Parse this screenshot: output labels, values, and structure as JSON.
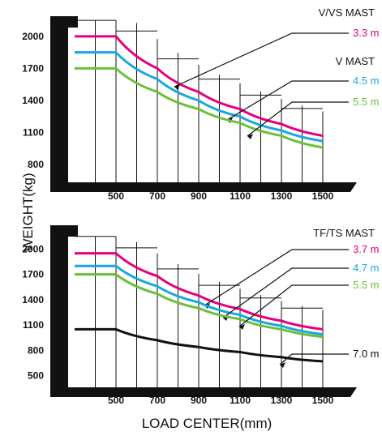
{
  "axis_titles": {
    "y": "WEIGHT(kg)",
    "x": "LOAD CENTER(mm)"
  },
  "colors": {
    "magenta": "#e6007e",
    "cyan": "#1aa7e0",
    "green": "#6cbf3a",
    "black": "#111111"
  },
  "chart_data": [
    {
      "type": "line",
      "mast_label": "V/VS MAST",
      "mast_label_2": "V  MAST",
      "x_ticks": [
        500,
        700,
        900,
        1100,
        1300,
        1500
      ],
      "y_ticks": [
        800,
        1100,
        1400,
        1700,
        2000
      ],
      "xlim": [
        300,
        1500
      ],
      "ylim": [
        750,
        2250
      ],
      "series": [
        {
          "name": "3.3 m",
          "color": "#e6007e",
          "x": [
            300,
            500,
            700,
            900,
            1100,
            1300,
            1500
          ],
          "y": [
            2000,
            2000,
            1700,
            1480,
            1320,
            1180,
            1070
          ]
        },
        {
          "name": "4.5 m",
          "color": "#1aa7e0",
          "x": [
            300,
            500,
            700,
            900,
            1100,
            1300,
            1500
          ],
          "y": [
            1850,
            1850,
            1600,
            1400,
            1250,
            1120,
            1020
          ]
        },
        {
          "name": "5.5 m",
          "color": "#6cbf3a",
          "x": [
            300,
            500,
            700,
            900,
            1100,
            1300,
            1500
          ],
          "y": [
            1700,
            1700,
            1480,
            1320,
            1190,
            1070,
            960
          ]
        }
      ]
    },
    {
      "type": "line",
      "mast_label": "TF/TS MAST",
      "x_ticks": [
        500,
        700,
        900,
        1100,
        1300,
        1500
      ],
      "y_ticks": [
        500,
        800,
        1100,
        1400,
        1700,
        2000
      ],
      "xlim": [
        300,
        1500
      ],
      "ylim": [
        450,
        2250
      ],
      "series": [
        {
          "name": "3.7 m",
          "color": "#e6007e",
          "x": [
            300,
            500,
            700,
            900,
            1100,
            1300,
            1500
          ],
          "y": [
            1950,
            1950,
            1680,
            1450,
            1290,
            1150,
            1050
          ]
        },
        {
          "name": "4.7 m",
          "color": "#1aa7e0",
          "x": [
            300,
            500,
            700,
            900,
            1100,
            1300,
            1500
          ],
          "y": [
            1800,
            1800,
            1560,
            1370,
            1220,
            1090,
            990
          ]
        },
        {
          "name": "5.5 m",
          "color": "#6cbf3a",
          "x": [
            300,
            500,
            700,
            900,
            1100,
            1300,
            1500
          ],
          "y": [
            1700,
            1700,
            1470,
            1300,
            1170,
            1050,
            960
          ]
        },
        {
          "name": "7.0 m",
          "color": "#111111",
          "x": [
            300,
            500,
            700,
            900,
            1100,
            1300,
            1500
          ],
          "y": [
            1050,
            1050,
            920,
            840,
            780,
            720,
            670
          ]
        }
      ]
    }
  ]
}
